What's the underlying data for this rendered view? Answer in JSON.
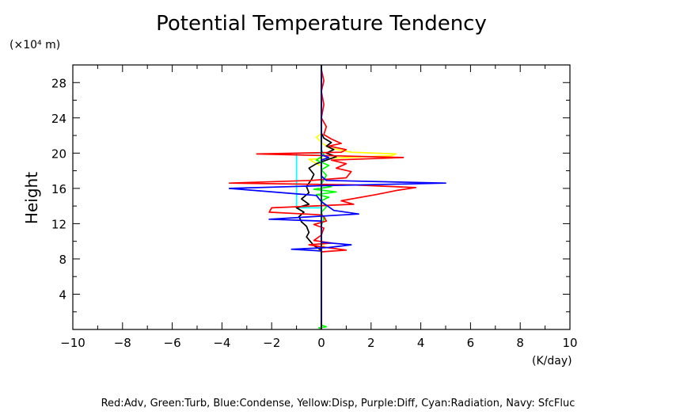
{
  "chart_data": {
    "type": "line",
    "title": "Potential Temperature Tendency",
    "xunit": "(K/day)",
    "yunit": "(×10⁴ m)",
    "ylabel": "Height",
    "xlim": [
      -10,
      10
    ],
    "ylim": [
      0,
      30
    ],
    "xticks": [
      -10,
      -8,
      -6,
      -4,
      -2,
      0,
      2,
      4,
      6,
      8,
      10
    ],
    "yticks": [
      4,
      8,
      12,
      16,
      20,
      24,
      28
    ],
    "legend_text": "Red:Adv, Green:Turb, Blue:Condense, Yellow:Disp, Purple:Diff, Cyan:Radiation, Navy: SfcFluc",
    "series": [
      {
        "color": "#ffff00",
        "points": [
          [
            0,
            0
          ],
          [
            0,
            8.6
          ],
          [
            -0.1,
            9.0
          ],
          [
            0.1,
            9.4
          ],
          [
            0,
            10.0
          ],
          [
            0,
            17.5
          ],
          [
            0,
            18.5
          ],
          [
            -0.5,
            19.3
          ],
          [
            1.0,
            19.5
          ],
          [
            2.8,
            19.7
          ],
          [
            3.0,
            19.9
          ],
          [
            1.2,
            20.1
          ],
          [
            0.3,
            20.6
          ],
          [
            0,
            21.2
          ],
          [
            -0.2,
            21.8
          ],
          [
            0,
            22.2
          ],
          [
            0,
            30
          ]
        ]
      },
      {
        "color": "#00ffff",
        "points": [
          [
            0,
            0
          ],
          [
            0,
            13.8
          ],
          [
            -1.0,
            13.8
          ],
          [
            -1.0,
            20.0
          ],
          [
            0,
            20.0
          ],
          [
            0,
            30
          ]
        ]
      },
      {
        "color": "#000000",
        "points": [
          [
            0,
            0
          ],
          [
            0,
            9.0
          ],
          [
            -0.3,
            9.5
          ],
          [
            -0.6,
            10.5
          ],
          [
            -0.5,
            11.0
          ],
          [
            -0.6,
            11.7
          ],
          [
            -0.8,
            12.2
          ],
          [
            -0.9,
            12.8
          ],
          [
            -0.7,
            13.3
          ],
          [
            -1.0,
            13.8
          ],
          [
            -0.5,
            14.2
          ],
          [
            -0.8,
            14.8
          ],
          [
            -0.5,
            15.5
          ],
          [
            -0.6,
            16.2
          ],
          [
            -0.4,
            17.0
          ],
          [
            -0.3,
            17.6
          ],
          [
            -0.5,
            18.3
          ],
          [
            -0.2,
            18.8
          ],
          [
            0.3,
            19.3
          ],
          [
            0.6,
            19.6
          ],
          [
            0.2,
            20.0
          ],
          [
            0.5,
            20.4
          ],
          [
            0.2,
            20.8
          ],
          [
            0.4,
            21.2
          ],
          [
            0.1,
            21.7
          ],
          [
            0,
            22.3
          ],
          [
            0,
            30
          ]
        ]
      },
      {
        "color": "#00ff00",
        "points": [
          [
            0,
            0
          ],
          [
            -0.1,
            0.2
          ],
          [
            0.2,
            0.3
          ],
          [
            0,
            0.5
          ],
          [
            0,
            11.8
          ],
          [
            0.1,
            12.5
          ],
          [
            0,
            13.3
          ],
          [
            0.2,
            13.9
          ],
          [
            0,
            14.6
          ],
          [
            0.3,
            15.0
          ],
          [
            -0.2,
            15.3
          ],
          [
            0.6,
            15.6
          ],
          [
            -0.3,
            15.9
          ],
          [
            0.4,
            16.2
          ],
          [
            0,
            16.5
          ],
          [
            0.2,
            17.5
          ],
          [
            0,
            18.1
          ],
          [
            0.3,
            18.6
          ],
          [
            -0.2,
            19.2
          ],
          [
            0.1,
            19.8
          ],
          [
            0,
            20.4
          ],
          [
            0,
            30
          ]
        ]
      },
      {
        "color": "#ff0000",
        "points": [
          [
            0,
            0
          ],
          [
            0,
            8.8
          ],
          [
            1.0,
            9.0
          ],
          [
            0.2,
            9.3
          ],
          [
            -0.5,
            9.6
          ],
          [
            0.4,
            9.8
          ],
          [
            -0.3,
            10.1
          ],
          [
            0,
            10.7
          ],
          [
            0.1,
            11.5
          ],
          [
            -0.3,
            11.9
          ],
          [
            0.2,
            12.3
          ],
          [
            0.1,
            12.8
          ],
          [
            0,
            13.0
          ],
          [
            -2.1,
            13.3
          ],
          [
            -2.0,
            13.8
          ],
          [
            1.3,
            14.2
          ],
          [
            0.8,
            14.6
          ],
          [
            2.2,
            15.3
          ],
          [
            3.1,
            15.8
          ],
          [
            3.8,
            16.1
          ],
          [
            1.2,
            16.4
          ],
          [
            -3.7,
            16.6
          ],
          [
            -0.4,
            16.9
          ],
          [
            1.0,
            17.2
          ],
          [
            1.2,
            17.9
          ],
          [
            0.6,
            18.3
          ],
          [
            1.0,
            18.8
          ],
          [
            0.4,
            19.2
          ],
          [
            3.3,
            19.5
          ],
          [
            0.5,
            19.7
          ],
          [
            -2.6,
            19.9
          ],
          [
            0.8,
            20.1
          ],
          [
            1.0,
            20.4
          ],
          [
            0.3,
            20.8
          ],
          [
            0.8,
            21.1
          ],
          [
            0.4,
            21.6
          ],
          [
            0.1,
            22.1
          ],
          [
            0.2,
            23.0
          ],
          [
            0,
            24.0
          ],
          [
            0.1,
            25.5
          ],
          [
            0,
            27.0
          ],
          [
            0.1,
            28.2
          ],
          [
            0,
            29.5
          ]
        ]
      },
      {
        "color": "#0000ff",
        "points": [
          [
            0,
            0
          ],
          [
            0,
            8.9
          ],
          [
            -1.2,
            9.1
          ],
          [
            0.3,
            9.3
          ],
          [
            1.2,
            9.6
          ],
          [
            0,
            9.9
          ],
          [
            0,
            12.3
          ],
          [
            -2.1,
            12.5
          ],
          [
            1.5,
            13.1
          ],
          [
            0.5,
            13.5
          ],
          [
            0,
            14.5
          ],
          [
            -0.2,
            15.2
          ],
          [
            -3.7,
            16.0
          ],
          [
            0,
            16.3
          ],
          [
            5.0,
            16.6
          ],
          [
            0.2,
            16.9
          ],
          [
            0,
            17.4
          ],
          [
            0,
            19.2
          ],
          [
            0.3,
            19.5
          ],
          [
            0,
            19.8
          ],
          [
            0,
            30
          ]
        ]
      },
      {
        "color": "#000080",
        "points": [
          [
            0,
            0
          ],
          [
            0,
            30
          ]
        ]
      }
    ]
  }
}
